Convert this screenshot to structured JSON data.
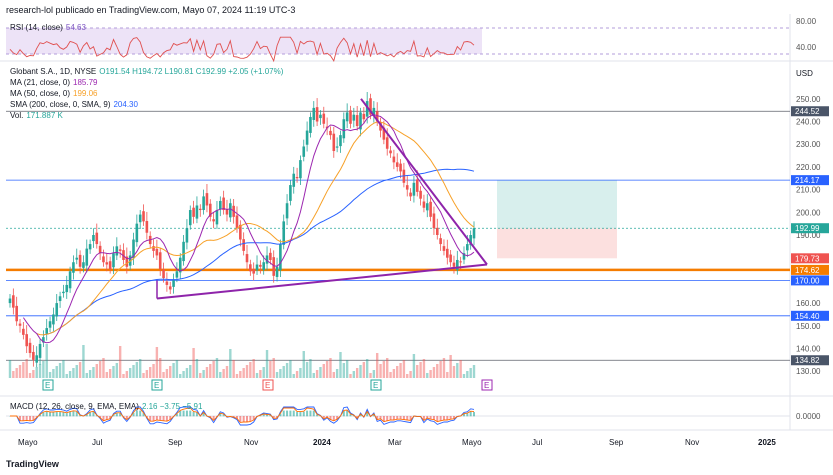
{
  "header": {
    "publisher": "research-lol publicado en TradingView.com, Mayo 07, 2024 11:19 UTC-3",
    "logo_text": "TradingView"
  },
  "symbol": {
    "title": "Globant S.A., 1D, NYSE",
    "ohlc": "O191.54 H194.72 L190.81 C192.99 +2.05 (+1.07%)",
    "currency": "USD"
  },
  "indicators": {
    "rsi_label": "RSI (14, close)",
    "rsi_value": "54.63",
    "ma21_label": "MA (21, close, 0)",
    "ma21_value": "185.79",
    "ma50_label": "MA (50, close, 0)",
    "ma50_value": "199.06",
    "sma200_label": "SMA (200, close, 0, SMA, 9)",
    "sma200_value": "204.30",
    "vol_label": "Vol.",
    "vol_value": "171.887 K",
    "macd_label": "MACD (12, 26, close, 9, EMA, EMA)",
    "macd_values": "2.16  −3.75  −5.91"
  },
  "chart_data": {
    "type": "candlestick",
    "x_ticks": [
      "Mayo",
      "Jul",
      "Sep",
      "Nov",
      "2024",
      "Mar",
      "Mayo",
      "Jul",
      "Sep",
      "Nov",
      "2025"
    ],
    "y_ticks": [
      "250.00",
      "240.00",
      "230.00",
      "220.00",
      "210.00",
      "200.00",
      "190.00",
      "180.00",
      "170.00",
      "160.00",
      "150.00",
      "140.00",
      "130.00"
    ],
    "ylim": [
      127,
      253
    ],
    "rsi_ticks": [
      "80.00",
      "40.00"
    ],
    "macd_ticks": [
      "0.0000"
    ],
    "earnings_marker": "E",
    "price_labels": [
      {
        "text": "244.52",
        "value": 244.52,
        "color": "#4a5568"
      },
      {
        "text": "214.17",
        "value": 214.17,
        "color": "#2962ff"
      },
      {
        "text": "192.99",
        "value": 192.99,
        "color": "#26a69a"
      },
      {
        "text": "179.73",
        "value": 179.73,
        "color": "#ef5350"
      },
      {
        "text": "174.62",
        "value": 174.62,
        "color": "#f57c00"
      },
      {
        "text": "170.00",
        "value": 170.0,
        "color": "#2962ff"
      },
      {
        "text": "154.40",
        "value": 154.4,
        "color": "#2962ff"
      },
      {
        "text": "134.82",
        "value": 134.82,
        "color": "#4a5568"
      }
    ],
    "horizontal_lines": [
      {
        "value": 244.52,
        "color": "#5d606b"
      },
      {
        "value": 214.17,
        "color": "#2962ff"
      },
      {
        "value": 192.99,
        "color": "#26a69a",
        "dotted": true
      },
      {
        "value": 174.62,
        "color": "#f57c00",
        "width": 2.5
      },
      {
        "value": 170.0,
        "color": "#2962ff"
      },
      {
        "value": 154.4,
        "color": "#2962ff"
      },
      {
        "value": 134.82,
        "color": "#5d606b"
      }
    ],
    "closes": [
      162,
      158,
      152,
      150,
      146,
      141,
      138,
      135,
      137,
      142,
      145,
      149,
      152,
      155,
      160,
      163,
      165,
      168,
      174,
      178,
      180,
      176,
      178,
      184,
      186,
      190,
      186,
      182,
      178,
      177,
      175,
      182,
      185,
      183,
      179,
      176,
      181,
      188,
      195,
      199,
      196,
      191,
      186,
      183,
      181,
      175,
      171,
      168,
      166,
      170,
      174,
      180,
      187,
      193,
      201,
      198,
      203,
      201,
      207,
      203,
      198,
      196,
      201,
      205,
      201,
      199,
      204,
      198,
      193,
      188,
      183,
      178,
      174,
      173,
      177,
      176,
      178,
      181,
      179,
      172,
      176,
      186,
      196,
      204,
      212,
      217,
      215,
      223,
      229,
      236,
      242,
      246,
      240,
      243,
      239,
      237,
      234,
      227,
      229,
      234,
      241,
      244,
      239,
      243,
      238,
      244,
      241,
      249,
      243,
      246,
      240,
      236,
      232,
      228,
      226,
      222,
      220,
      218,
      213,
      210,
      207,
      213,
      209,
      206,
      202,
      204,
      198,
      193,
      190,
      186,
      183,
      180,
      178,
      176,
      179,
      178,
      182,
      186,
      190,
      193
    ]
  },
  "position_box": {
    "entry": 192.99,
    "target": 214.17,
    "stop": 179.73
  }
}
